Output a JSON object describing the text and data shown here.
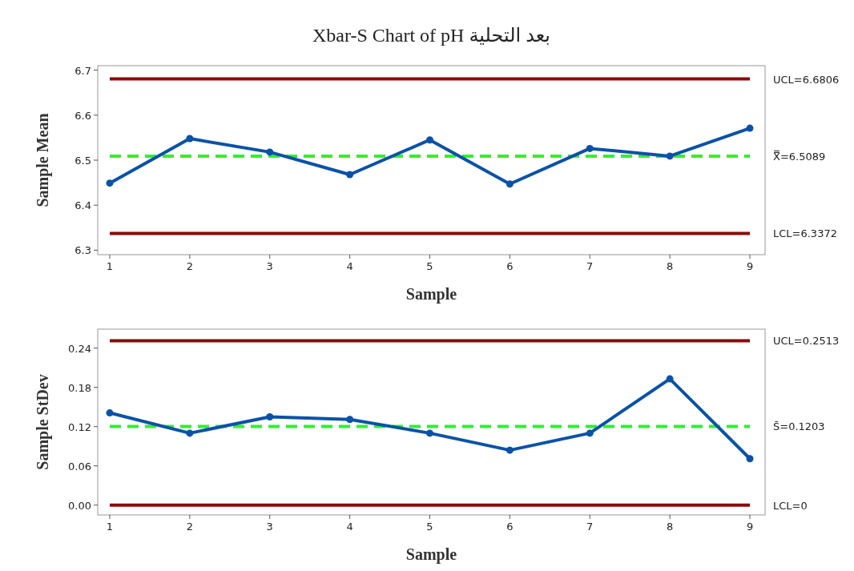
{
  "chart_data": [
    {
      "type": "line",
      "title": "Xbar-S Chart of pH بعد التحلية",
      "xlabel": "Sample",
      "ylabel": "Sample Mean",
      "x": [
        1,
        2,
        3,
        4,
        5,
        6,
        7,
        8,
        9
      ],
      "marker": "circle",
      "grid": false,
      "series": [
        {
          "color": "#0a52a8",
          "values": [
            6.449,
            6.548,
            6.518,
            6.468,
            6.545,
            6.447,
            6.526,
            6.509,
            6.571
          ]
        }
      ],
      "xlim": [
        0.85,
        9.19
      ],
      "xticks": [
        1,
        2,
        3,
        4,
        5,
        6,
        7,
        8,
        9
      ],
      "ylim": [
        6.29,
        6.71
      ],
      "yticks": [
        6.3,
        6.4,
        6.5,
        6.6,
        6.7
      ],
      "ref_lines": [
        {
          "axis": "y",
          "value": 6.6806,
          "label": "UCL=6.6806",
          "color": "#8b0a0a",
          "line_style": "solid"
        },
        {
          "axis": "y",
          "value": 6.5089,
          "label": "X̿=6.5089",
          "color": "#33ee33",
          "line_style": "dashed"
        },
        {
          "axis": "y",
          "value": 6.3372,
          "label": "LCL=6.3372",
          "color": "#8b0a0a",
          "line_style": "solid"
        }
      ]
    },
    {
      "type": "line",
      "xlabel": "Sample",
      "ylabel": "Sample StDev",
      "x": [
        1,
        2,
        3,
        4,
        5,
        6,
        7,
        8,
        9
      ],
      "marker": "circle",
      "grid": false,
      "series": [
        {
          "color": "#0a52a8",
          "values": [
            0.141,
            0.11,
            0.135,
            0.131,
            0.11,
            0.084,
            0.11,
            0.193,
            0.071
          ]
        }
      ],
      "xlim": [
        0.85,
        9.19
      ],
      "xticks": [
        1,
        2,
        3,
        4,
        5,
        6,
        7,
        8,
        9
      ],
      "ylim": [
        -0.015,
        0.269
      ],
      "yticks": [
        {
          "value": 0,
          "label": "0.00"
        },
        0.06,
        0.12,
        0.18,
        0.24
      ],
      "ref_lines": [
        {
          "axis": "y",
          "value": 0.2513,
          "label": "UCL=0.2513",
          "color": "#8b0a0a",
          "line_style": "solid"
        },
        {
          "axis": "y",
          "value": 0.1203,
          "label": "S̄=0.1203",
          "color": "#33ee33",
          "line_style": "dashed"
        },
        {
          "axis": "y",
          "value": 0,
          "label": "LCL=0",
          "color": "#8b0a0a",
          "line_style": "solid"
        }
      ]
    }
  ]
}
